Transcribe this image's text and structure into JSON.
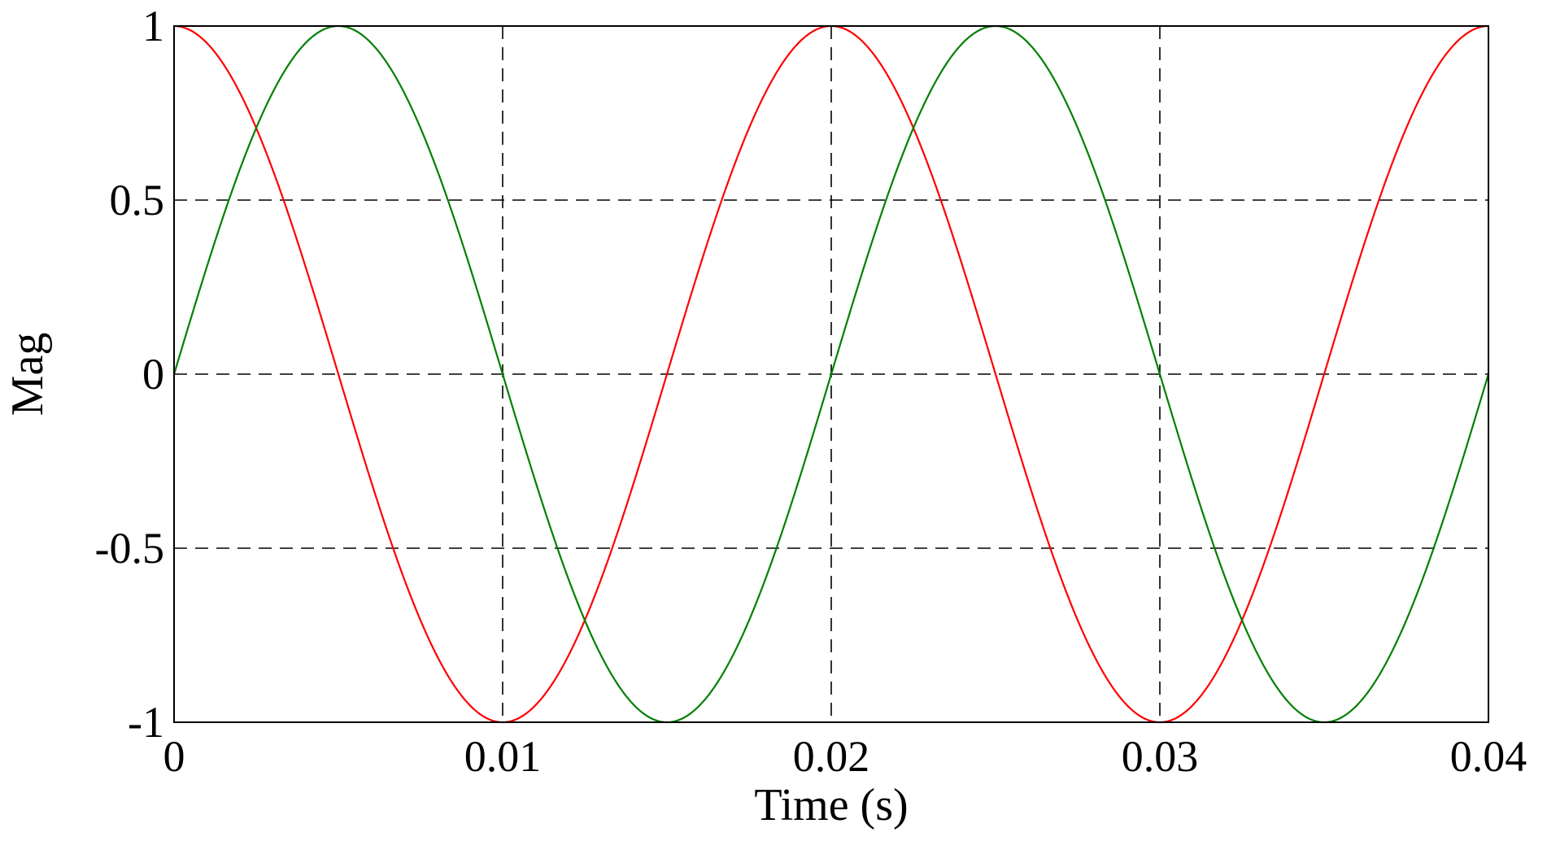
{
  "chart_data": {
    "type": "line",
    "title": "",
    "xlabel": "Time (s)",
    "ylabel": "Mag",
    "xlim": [
      0,
      0.04
    ],
    "ylim": [
      -1,
      1
    ],
    "x_ticks": [
      0,
      0.01,
      0.02,
      0.03,
      0.04
    ],
    "x_tick_labels": [
      "0",
      "0.01",
      "0.02",
      "0.03",
      "0.04"
    ],
    "y_ticks": [
      -1,
      -0.5,
      0,
      0.5,
      1
    ],
    "y_tick_labels": [
      "-1",
      "-0.5",
      "0",
      "0.5",
      "1"
    ],
    "grid": true,
    "grid_style": "dashed",
    "legend": "none",
    "series": [
      {
        "color": "#ff0000",
        "x": [
          0,
          0.0025,
          0.005,
          0.0075,
          0.01,
          0.0125,
          0.015,
          0.0175,
          0.02,
          0.0225,
          0.025,
          0.0275,
          0.03,
          0.0325,
          0.035,
          0.0375,
          0.04
        ],
        "values": [
          1,
          0.707,
          0,
          -0.707,
          -1,
          -0.707,
          0,
          0.707,
          1,
          0.707,
          0,
          -0.707,
          -1,
          -0.707,
          0,
          0.707,
          1
        ]
      },
      {
        "color": "#008000",
        "x": [
          0,
          0.0025,
          0.005,
          0.0075,
          0.01,
          0.0125,
          0.015,
          0.0175,
          0.02,
          0.0225,
          0.025,
          0.0275,
          0.03,
          0.0325,
          0.035,
          0.0375,
          0.04
        ],
        "values": [
          0,
          0.707,
          1,
          0.707,
          0,
          -0.707,
          -1,
          -0.707,
          0,
          0.707,
          1,
          0.707,
          0,
          -0.707,
          -1,
          -0.707,
          0
        ]
      }
    ]
  }
}
